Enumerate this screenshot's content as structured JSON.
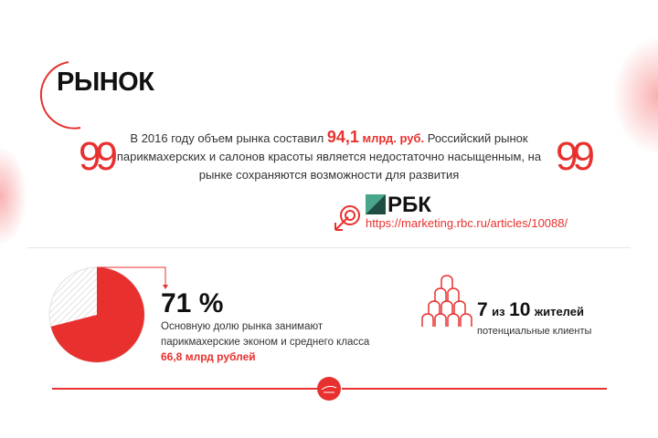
{
  "title": "РЫНОК",
  "quote": {
    "open_mark": "99",
    "close_mark": "99",
    "pre": "В 2016 году объем рынка составил ",
    "amount": "94,1",
    "unit": " млрд. руб.",
    "post": " Российский рынок парикмахерских и салонов красоты является недостаточно насыщенным, на рынке сохраняются возможности для развития"
  },
  "source": {
    "logo_text": "РБК",
    "url": "https://marketing.rbc.ru/articles/10088/"
  },
  "share": {
    "percent_label": "71 %",
    "value": 71,
    "description_1": "Основную долю рынка занимают",
    "description_2": "парикмахерские эконом и среднего класса",
    "amount": "66,8 млрд рублей"
  },
  "clients": {
    "n1": "7",
    "of": "из",
    "n2": "10",
    "residents": "жителей",
    "caption": "потенциальные клиенты"
  },
  "colors": {
    "accent": "#e8312e",
    "hatch": "#d8d8d8"
  }
}
